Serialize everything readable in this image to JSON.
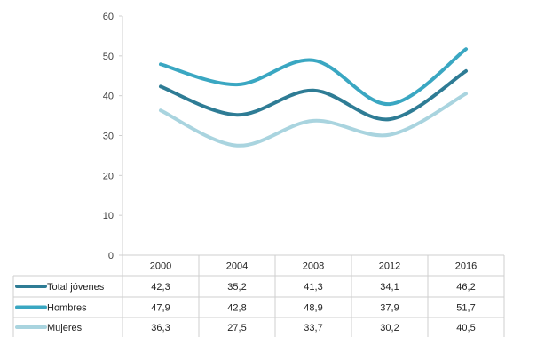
{
  "chart_data": {
    "type": "line",
    "categories": [
      "2000",
      "2004",
      "2008",
      "2012",
      "2016"
    ],
    "series": [
      {
        "name": "Total jóvenes",
        "values": [
          42.3,
          35.2,
          41.3,
          34.1,
          46.2
        ],
        "labels": [
          "42,3",
          "35,2",
          "41,3",
          "34,1",
          "46,2"
        ],
        "color": "#2e7c95"
      },
      {
        "name": "Hombres",
        "values": [
          47.9,
          42.8,
          48.9,
          37.9,
          51.7
        ],
        "labels": [
          "47,9",
          "42,8",
          "48,9",
          "37,9",
          "51,7"
        ],
        "color": "#3aa7c2"
      },
      {
        "name": "Mujeres",
        "values": [
          36.3,
          27.5,
          33.7,
          30.2,
          40.5
        ],
        "labels": [
          "36,3",
          "27,5",
          "33,7",
          "30,2",
          "40,5"
        ],
        "color": "#a9d4df"
      }
    ],
    "yticks": [
      "0",
      "10",
      "20",
      "30",
      "40",
      "50",
      "60"
    ],
    "ylim": [
      0,
      60
    ],
    "grid": false,
    "legend": "data-table-left",
    "smooth": true
  }
}
